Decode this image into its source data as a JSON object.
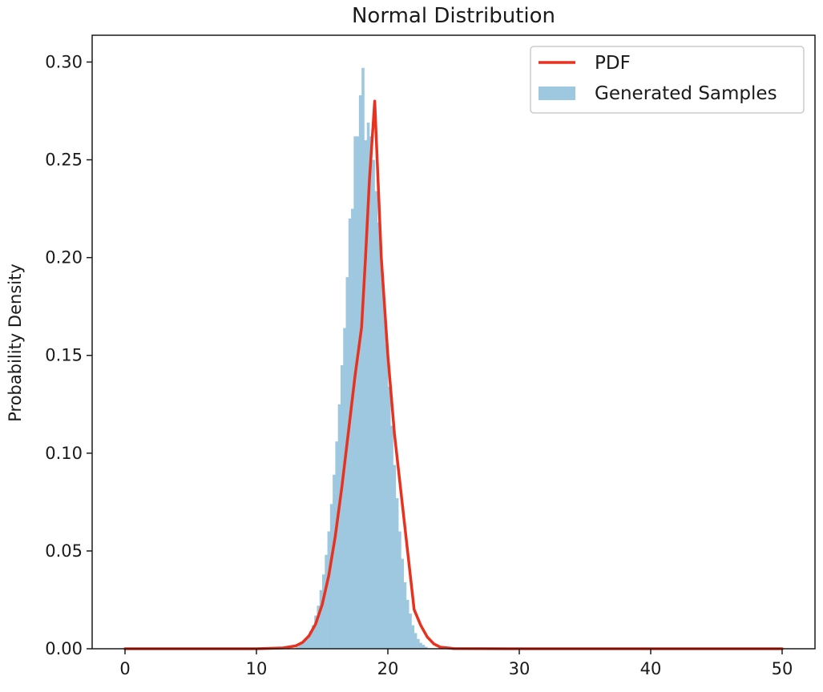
{
  "chart_data": {
    "type": "bar",
    "title": "Normal Distribution",
    "xlabel": "",
    "ylabel": "Probability Density",
    "xlim": [
      -2.5,
      52.5
    ],
    "ylim": [
      0,
      0.3137
    ],
    "x_ticks": [
      "0",
      "10",
      "20",
      "30",
      "40",
      "50"
    ],
    "y_ticks": [
      "0.00",
      "0.05",
      "0.10",
      "0.15",
      "0.20",
      "0.25",
      "0.30"
    ],
    "grid": false,
    "legend": {
      "position": "top-right",
      "entries": [
        "PDF",
        "Generated Samples"
      ]
    },
    "colors": {
      "pdf": "#e8311f",
      "histogram": "#9ec8e0"
    },
    "series": [
      {
        "name": "Generated Samples",
        "type": "histogram",
        "bin_width": 0.2,
        "bins": [
          [
            13.0,
            0.001
          ],
          [
            13.2,
            0.002
          ],
          [
            13.4,
            0.003
          ],
          [
            13.6,
            0.005
          ],
          [
            13.8,
            0.006
          ],
          [
            14.0,
            0.009
          ],
          [
            14.2,
            0.012
          ],
          [
            14.4,
            0.017
          ],
          [
            14.6,
            0.022
          ],
          [
            14.8,
            0.03
          ],
          [
            15.0,
            0.038
          ],
          [
            15.2,
            0.048
          ],
          [
            15.4,
            0.06
          ],
          [
            15.6,
            0.074
          ],
          [
            15.8,
            0.089
          ],
          [
            16.0,
            0.106
          ],
          [
            16.2,
            0.125
          ],
          [
            16.4,
            0.145
          ],
          [
            16.6,
            0.164
          ],
          [
            16.8,
            0.19
          ],
          [
            17.0,
            0.22
          ],
          [
            17.2,
            0.225
          ],
          [
            17.4,
            0.262
          ],
          [
            17.6,
            0.262
          ],
          [
            17.8,
            0.283
          ],
          [
            18.0,
            0.297
          ],
          [
            18.2,
            0.26
          ],
          [
            18.4,
            0.269
          ],
          [
            18.6,
            0.262
          ],
          [
            18.8,
            0.25
          ],
          [
            19.0,
            0.234
          ],
          [
            19.2,
            0.218
          ],
          [
            19.4,
            0.198
          ],
          [
            19.6,
            0.178
          ],
          [
            19.8,
            0.156
          ],
          [
            20.0,
            0.134
          ],
          [
            20.2,
            0.114
          ],
          [
            20.4,
            0.094
          ],
          [
            20.6,
            0.077
          ],
          [
            20.8,
            0.06
          ],
          [
            21.0,
            0.046
          ],
          [
            21.2,
            0.034
          ],
          [
            21.4,
            0.025
          ],
          [
            21.6,
            0.018
          ],
          [
            21.8,
            0.012
          ],
          [
            22.0,
            0.008
          ],
          [
            22.2,
            0.005
          ],
          [
            22.4,
            0.003
          ],
          [
            22.6,
            0.002
          ],
          [
            22.8,
            0.001
          ]
        ]
      },
      {
        "name": "PDF",
        "type": "line",
        "x": [
          0,
          5,
          10,
          12,
          13,
          13.5,
          14,
          14.5,
          15,
          15.5,
          16,
          16.5,
          17,
          17.5,
          18,
          18.3,
          18.6,
          19,
          19.5,
          20,
          20.5,
          21,
          21.5,
          22,
          22.5,
          23,
          23.5,
          24,
          25,
          30,
          40,
          50
        ],
        "y": [
          0,
          0,
          0,
          0.0004,
          0.0015,
          0.0032,
          0.0066,
          0.0126,
          0.0225,
          0.0373,
          0.0576,
          0.0827,
          0.1109,
          0.1394,
          0.1643,
          0.2,
          0.24,
          0.28,
          0.2,
          0.15,
          0.11,
          0.08,
          0.05,
          0.02,
          0.012,
          0.006,
          0.0025,
          0.0008,
          0.0001,
          0,
          0,
          0
        ]
      }
    ]
  }
}
